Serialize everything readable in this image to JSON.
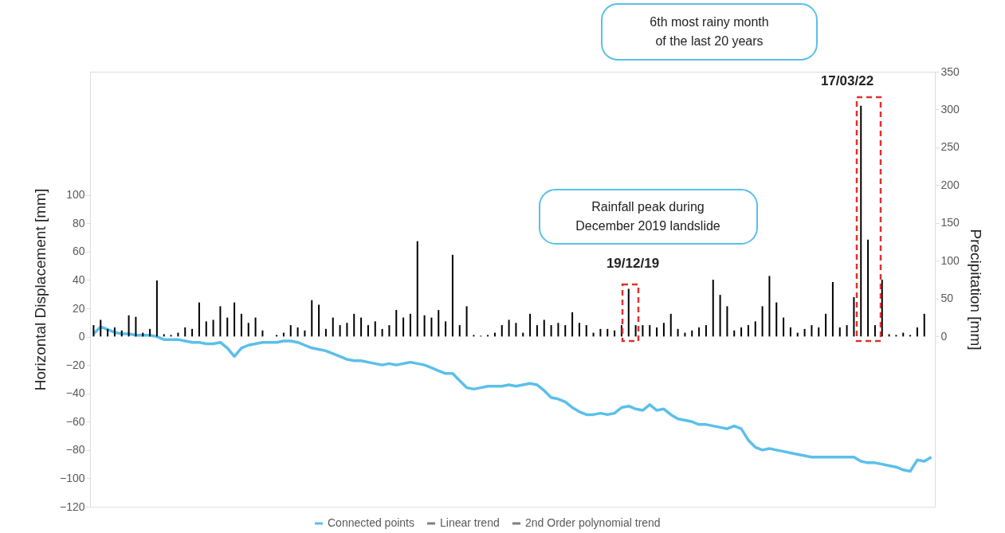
{
  "chart_data": {
    "type": "line",
    "categories": [
      null,
      null,
      null,
      null,
      null,
      null,
      null,
      null,
      null,
      null,
      null,
      null,
      null,
      null,
      null,
      null,
      null,
      null,
      null,
      null,
      null,
      null,
      null,
      null,
      null,
      null,
      null,
      null,
      null,
      null,
      null,
      null,
      null,
      null,
      null,
      null,
      null,
      null,
      null,
      null,
      null,
      null,
      null,
      null,
      null,
      null,
      null,
      null,
      null,
      null,
      null,
      null,
      null,
      null,
      null,
      null,
      null,
      null,
      null,
      null,
      null,
      null,
      null,
      null,
      null,
      null,
      null,
      null,
      null,
      null,
      null,
      null,
      null,
      null,
      null,
      null,
      null,
      null,
      null,
      null,
      null,
      null,
      null,
      null,
      null,
      null,
      null,
      null,
      null,
      null,
      null,
      null,
      null,
      null,
      null,
      null,
      null,
      null,
      null,
      null,
      null,
      null,
      null,
      null,
      null,
      null,
      null,
      null,
      null,
      null,
      null,
      null,
      null,
      null,
      null,
      null,
      null,
      null,
      null,
      null
    ],
    "ylabel": "Horizontal Displacement [mm]",
    "y2label": "Precipitation [mm]",
    "ylim": [
      -120,
      187
    ],
    "yticks": [
      -120,
      -100,
      -80,
      -60,
      -40,
      -20,
      0,
      20,
      40,
      60,
      80,
      100
    ],
    "y2lim": [
      -225,
      350
    ],
    "y2ticks": [
      0,
      50,
      100,
      150,
      200,
      250,
      300,
      350
    ],
    "grid": false,
    "legend": "bottom",
    "series": [
      {
        "name": "Connected points",
        "color": "#5bbfea",
        "values": [
          2,
          7,
          5,
          3,
          2,
          2,
          1,
          1,
          1,
          0,
          -2,
          -2,
          -2,
          -3,
          -4,
          -4,
          -5,
          -5,
          -4,
          -8,
          -14,
          -8,
          -6,
          -5,
          -4,
          -4,
          -4,
          -3,
          -3,
          -4,
          -6,
          -8,
          -9,
          -10,
          -12,
          -14,
          -16,
          -17,
          -17,
          -18,
          -19,
          -20,
          -19,
          -20,
          -19,
          -18,
          -19,
          -20,
          -22,
          -24,
          -26,
          -26,
          -31,
          -36,
          -37,
          -36,
          -35,
          -35,
          -35,
          -34,
          -35,
          -34,
          -33,
          -34,
          -38,
          -43,
          -44,
          -46,
          -50,
          -53,
          -55,
          -55,
          -54,
          -55,
          -54,
          -50,
          -49,
          -51,
          -52,
          -48,
          -52,
          -51,
          -55,
          -58,
          -59,
          -60,
          -62,
          -62,
          -63,
          -64,
          -65,
          -63,
          -65,
          -73,
          -78,
          -80,
          -79,
          -80,
          -81,
          -82,
          -83,
          -84,
          -85,
          -85,
          -85,
          -85,
          -85,
          -85,
          -85,
          -88,
          -89,
          -89,
          -90,
          -91,
          -92,
          -94,
          -95,
          -87,
          -88,
          -85
        ]
      },
      {
        "type": "bar",
        "axis": "y2",
        "color": "#000000",
        "values": [
          15,
          22,
          10,
          12,
          8,
          28,
          26,
          5,
          10,
          74,
          3,
          2,
          5,
          12,
          10,
          45,
          20,
          22,
          40,
          25,
          45,
          30,
          18,
          25,
          8,
          0,
          2,
          5,
          15,
          12,
          8,
          48,
          42,
          10,
          25,
          15,
          18,
          30,
          25,
          15,
          20,
          10,
          15,
          35,
          25,
          30,
          126,
          28,
          25,
          35,
          20,
          108,
          15,
          40,
          2,
          1,
          2,
          5,
          15,
          22,
          18,
          5,
          30,
          15,
          22,
          15,
          18,
          15,
          32,
          18,
          15,
          5,
          10,
          10,
          8,
          15,
          63,
          15,
          15,
          15,
          12,
          18,
          30,
          10,
          5,
          8,
          12,
          15,
          75,
          55,
          40,
          8,
          12,
          15,
          20,
          40,
          80,
          45,
          25,
          12,
          5,
          10,
          15,
          12,
          30,
          72,
          12,
          15,
          52,
          305,
          128,
          15,
          75,
          3,
          2,
          5,
          2,
          12,
          30,
          0
        ]
      },
      {
        "name": "Linear trend",
        "color": "#7f7f7f",
        "values": [
          null,
          null,
          null,
          null,
          null,
          null,
          null,
          null,
          null,
          null,
          null,
          null,
          null,
          null,
          null,
          null,
          null,
          null,
          null,
          null,
          null,
          null,
          null,
          null,
          null,
          null,
          null,
          null,
          null,
          null,
          null,
          null,
          null,
          null,
          null,
          null,
          null,
          null,
          null,
          null,
          null,
          null,
          null,
          null,
          null,
          null,
          null,
          null,
          null,
          null,
          null,
          null,
          null,
          null,
          null,
          null,
          null,
          null,
          null,
          null,
          null,
          null,
          null,
          null,
          null,
          null,
          null,
          null,
          null,
          null,
          null,
          null,
          null,
          null,
          null,
          null,
          null,
          null,
          null,
          null,
          null,
          null,
          null,
          null,
          null,
          null,
          null,
          null,
          null,
          null,
          null,
          null,
          null,
          null,
          null,
          null,
          null,
          null,
          null,
          null,
          null,
          null,
          null,
          null,
          null,
          null,
          null,
          null,
          null,
          null,
          null,
          null,
          null,
          null,
          null,
          null,
          null,
          null,
          null,
          null
        ]
      },
      {
        "name": "2nd Order polynomial trend",
        "color": "#7f7f7f",
        "values": [
          null,
          null,
          null,
          null,
          null,
          null,
          null,
          null,
          null,
          null,
          null,
          null,
          null,
          null,
          null,
          null,
          null,
          null,
          null,
          null,
          null,
          null,
          null,
          null,
          null,
          null,
          null,
          null,
          null,
          null,
          null,
          null,
          null,
          null,
          null,
          null,
          null,
          null,
          null,
          null,
          null,
          null,
          null,
          null,
          null,
          null,
          null,
          null,
          null,
          null,
          null,
          null,
          null,
          null,
          null,
          null,
          null,
          null,
          null,
          null,
          null,
          null,
          null,
          null,
          null,
          null,
          null,
          null,
          null,
          null,
          null,
          null,
          null,
          null,
          null,
          null,
          null,
          null,
          null,
          null,
          null,
          null,
          null,
          null,
          null,
          null,
          null,
          null,
          null,
          null,
          null,
          null,
          null,
          null,
          null,
          null,
          null,
          null,
          null,
          null,
          null,
          null,
          null,
          null,
          null,
          null,
          null,
          null,
          null,
          null,
          null,
          null,
          null,
          null,
          null,
          null,
          null,
          null,
          null,
          null
        ]
      }
    ],
    "annotations": [
      "Rainfall peak during December 2019 landslide",
      "19/12/19",
      "6th most rainy month of the last 20 years",
      "17/03/22"
    ]
  }
}
